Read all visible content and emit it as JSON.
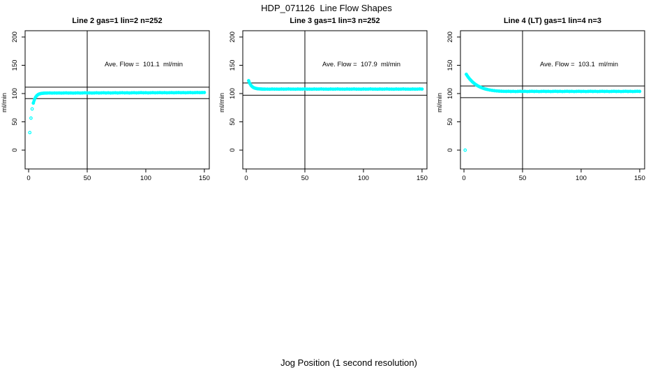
{
  "figure": {
    "title": "HDP_071126  Line Flow Shapes",
    "xlabel": "Jog Position (1 second resolution)",
    "background_color": "#ffffff",
    "point_color": "#00ffff",
    "axis_color": "#000000"
  },
  "chart_data": [
    {
      "type": "scatter",
      "title": "Line 2 gas=1 lin=2 n=252",
      "ylabel": "ml/min",
      "annotation": "Ave. Flow =  101.1  ml/min",
      "ave_flow": 101.1,
      "x_ticks": [
        0,
        50,
        100,
        150
      ],
      "y_ticks": [
        0,
        50,
        100,
        150,
        200
      ],
      "xlim": [
        -3,
        154.2
      ],
      "ylim": [
        -33.3,
        211.1
      ],
      "vline_x": 50,
      "hlines": [
        111.2,
        91.0
      ],
      "points": [
        [
          1,
          31
        ],
        [
          2,
          56.6
        ],
        [
          3,
          72.8
        ],
        [
          4,
          83.1
        ],
        [
          5,
          89.6
        ],
        [
          6,
          93.8
        ],
        [
          7,
          96.4
        ],
        [
          8,
          98.1
        ],
        [
          9,
          99.2
        ],
        [
          10,
          99.8
        ],
        [
          11,
          100.3
        ],
        [
          12,
          100.5
        ],
        [
          13,
          100.7
        ],
        [
          14,
          100.8
        ],
        [
          15,
          100.8
        ],
        [
          16,
          100.9
        ],
        [
          18,
          101.1
        ],
        [
          20,
          100.8
        ],
        [
          22,
          101.0
        ],
        [
          24,
          100.9
        ],
        [
          26,
          101.1
        ],
        [
          28,
          100.8
        ],
        [
          30,
          101.0
        ],
        [
          32,
          101.2
        ],
        [
          34,
          100.9
        ],
        [
          36,
          101.1
        ],
        [
          38,
          100.8
        ],
        [
          40,
          101.0
        ],
        [
          42,
          101.2
        ],
        [
          44,
          100.9
        ],
        [
          46,
          101.1
        ],
        [
          48,
          101.3
        ],
        [
          50,
          101.0
        ],
        [
          52,
          101.2
        ],
        [
          54,
          100.9
        ],
        [
          56,
          101.1
        ],
        [
          58,
          101.3
        ],
        [
          60,
          101.0
        ],
        [
          62,
          101.2
        ],
        [
          64,
          101.4
        ],
        [
          66,
          101.1
        ],
        [
          68,
          101.3
        ],
        [
          70,
          101.0
        ],
        [
          72,
          101.2
        ],
        [
          74,
          101.4
        ],
        [
          76,
          101.1
        ],
        [
          78,
          101.3
        ],
        [
          80,
          101.5
        ],
        [
          82,
          101.2
        ],
        [
          84,
          101.4
        ],
        [
          86,
          101.1
        ],
        [
          88,
          101.3
        ],
        [
          90,
          101.5
        ],
        [
          92,
          101.2
        ],
        [
          94,
          101.4
        ],
        [
          96,
          101.6
        ],
        [
          98,
          101.3
        ],
        [
          100,
          101.5
        ],
        [
          102,
          101.2
        ],
        [
          104,
          101.4
        ],
        [
          106,
          101.6
        ],
        [
          108,
          101.3
        ],
        [
          110,
          101.5
        ],
        [
          112,
          101.7
        ],
        [
          114,
          101.4
        ],
        [
          116,
          101.6
        ],
        [
          118,
          101.3
        ],
        [
          120,
          101.5
        ],
        [
          122,
          101.7
        ],
        [
          124,
          101.4
        ],
        [
          126,
          101.6
        ],
        [
          128,
          101.8
        ],
        [
          130,
          101.5
        ],
        [
          132,
          101.7
        ],
        [
          134,
          101.4
        ],
        [
          136,
          101.6
        ],
        [
          138,
          101.8
        ],
        [
          140,
          101.5
        ],
        [
          142,
          101.7
        ],
        [
          144,
          101.9
        ],
        [
          146,
          101.6
        ],
        [
          148,
          101.8
        ],
        [
          150,
          101.9
        ]
      ]
    },
    {
      "type": "scatter",
      "title": "Line 3 gas=1 lin=3 n=252",
      "ylabel": "ml/min",
      "annotation": "Ave. Flow =  107.9  ml/min",
      "ave_flow": 107.9,
      "x_ticks": [
        0,
        50,
        100,
        150
      ],
      "y_ticks": [
        0,
        50,
        100,
        150,
        200
      ],
      "xlim": [
        -3,
        154.2
      ],
      "ylim": [
        -33.3,
        211.1
      ],
      "vline_x": 50,
      "hlines": [
        118.7,
        97.1
      ],
      "points": [
        [
          2,
          122.8
        ],
        [
          3,
          117.9
        ],
        [
          4,
          114.5
        ],
        [
          5,
          112.3
        ],
        [
          6,
          110.8
        ],
        [
          7,
          109.8
        ],
        [
          8,
          109.2
        ],
        [
          9,
          108.7
        ],
        [
          10,
          108.4
        ],
        [
          11,
          108.2
        ],
        [
          12,
          108.1
        ],
        [
          13,
          108.0
        ],
        [
          14,
          107.9
        ],
        [
          15,
          107.9
        ],
        [
          16,
          107.8
        ],
        [
          18,
          107.9
        ],
        [
          20,
          107.7
        ],
        [
          22,
          108.0
        ],
        [
          24,
          107.8
        ],
        [
          26,
          107.9
        ],
        [
          28,
          107.7
        ],
        [
          30,
          108.0
        ],
        [
          32,
          107.8
        ],
        [
          34,
          107.9
        ],
        [
          36,
          108.1
        ],
        [
          38,
          107.8
        ],
        [
          40,
          107.9
        ],
        [
          42,
          107.7
        ],
        [
          44,
          108.0
        ],
        [
          46,
          107.8
        ],
        [
          48,
          107.9
        ],
        [
          50,
          108.1
        ],
        [
          52,
          107.8
        ],
        [
          54,
          107.9
        ],
        [
          56,
          107.7
        ],
        [
          58,
          108.0
        ],
        [
          60,
          107.8
        ],
        [
          62,
          107.9
        ],
        [
          64,
          108.1
        ],
        [
          66,
          107.8
        ],
        [
          68,
          107.9
        ],
        [
          70,
          107.7
        ],
        [
          72,
          108.0
        ],
        [
          74,
          107.8
        ],
        [
          76,
          107.9
        ],
        [
          78,
          108.1
        ],
        [
          80,
          107.8
        ],
        [
          82,
          107.9
        ],
        [
          84,
          107.7
        ],
        [
          86,
          108.0
        ],
        [
          88,
          107.8
        ],
        [
          90,
          107.9
        ],
        [
          92,
          108.1
        ],
        [
          94,
          107.8
        ],
        [
          96,
          107.9
        ],
        [
          98,
          107.7
        ],
        [
          100,
          108.0
        ],
        [
          102,
          107.8
        ],
        [
          104,
          107.9
        ],
        [
          106,
          108.1
        ],
        [
          108,
          107.8
        ],
        [
          110,
          107.9
        ],
        [
          112,
          107.7
        ],
        [
          114,
          108.0
        ],
        [
          116,
          107.8
        ],
        [
          118,
          107.9
        ],
        [
          120,
          108.1
        ],
        [
          122,
          107.8
        ],
        [
          124,
          107.9
        ],
        [
          126,
          107.7
        ],
        [
          128,
          108.0
        ],
        [
          130,
          107.8
        ],
        [
          132,
          107.9
        ],
        [
          134,
          108.1
        ],
        [
          136,
          107.8
        ],
        [
          138,
          107.9
        ],
        [
          140,
          107.7
        ],
        [
          142,
          108.0
        ],
        [
          144,
          107.8
        ],
        [
          146,
          107.9
        ],
        [
          148,
          108.1
        ],
        [
          150,
          107.9
        ]
      ]
    },
    {
      "type": "scatter",
      "title": "Line 4 (LT) gas=1 lin=4 n=3",
      "ylabel": "ml/min",
      "annotation": "Ave. Flow =  103.1  ml/min",
      "ave_flow": 103.1,
      "x_ticks": [
        0,
        50,
        100,
        150
      ],
      "y_ticks": [
        0,
        50,
        100,
        150,
        200
      ],
      "xlim": [
        -3,
        154.2
      ],
      "ylim": [
        -33.3,
        211.1
      ],
      "vline_x": 50,
      "hlines": [
        113.4,
        92.8
      ],
      "points": [
        [
          1,
          0
        ],
        [
          2,
          134.0
        ],
        [
          3,
          130.9
        ],
        [
          4,
          128.0
        ],
        [
          5,
          125.5
        ],
        [
          6,
          123.2
        ],
        [
          7,
          121.1
        ],
        [
          8,
          119.2
        ],
        [
          9,
          117.5
        ],
        [
          10,
          116.0
        ],
        [
          11,
          114.6
        ],
        [
          12,
          113.4
        ],
        [
          13,
          112.3
        ],
        [
          14,
          111.3
        ],
        [
          15,
          110.4
        ],
        [
          16,
          109.6
        ],
        [
          17,
          108.9
        ],
        [
          18,
          108.2
        ],
        [
          19,
          107.7
        ],
        [
          20,
          107.2
        ],
        [
          22,
          106.3
        ],
        [
          24,
          105.6
        ],
        [
          26,
          105.0
        ],
        [
          28,
          104.6
        ],
        [
          30,
          104.3
        ],
        [
          32,
          104.1
        ],
        [
          34,
          103.9
        ],
        [
          36,
          103.8
        ],
        [
          38,
          104.0
        ],
        [
          40,
          103.7
        ],
        [
          42,
          103.9
        ],
        [
          44,
          103.6
        ],
        [
          46,
          103.8
        ],
        [
          48,
          104.0
        ],
        [
          50,
          103.7
        ],
        [
          52,
          103.9
        ],
        [
          54,
          103.6
        ],
        [
          56,
          103.8
        ],
        [
          58,
          104.0
        ],
        [
          60,
          103.7
        ],
        [
          62,
          103.9
        ],
        [
          64,
          103.6
        ],
        [
          66,
          103.8
        ],
        [
          68,
          104.0
        ],
        [
          70,
          103.7
        ],
        [
          72,
          103.9
        ],
        [
          74,
          103.6
        ],
        [
          76,
          103.8
        ],
        [
          78,
          104.0
        ],
        [
          80,
          103.7
        ],
        [
          82,
          103.9
        ],
        [
          84,
          103.6
        ],
        [
          86,
          103.8
        ],
        [
          88,
          104.0
        ],
        [
          90,
          103.7
        ],
        [
          92,
          103.9
        ],
        [
          94,
          103.6
        ],
        [
          96,
          103.8
        ],
        [
          98,
          104.0
        ],
        [
          100,
          103.7
        ],
        [
          102,
          103.9
        ],
        [
          104,
          103.6
        ],
        [
          106,
          103.8
        ],
        [
          108,
          104.0
        ],
        [
          110,
          103.7
        ],
        [
          112,
          103.9
        ],
        [
          114,
          103.6
        ],
        [
          116,
          103.8
        ],
        [
          118,
          104.0
        ],
        [
          120,
          103.7
        ],
        [
          122,
          103.9
        ],
        [
          124,
          103.6
        ],
        [
          126,
          103.8
        ],
        [
          128,
          104.0
        ],
        [
          130,
          103.7
        ],
        [
          132,
          103.9
        ],
        [
          134,
          103.6
        ],
        [
          136,
          103.8
        ],
        [
          138,
          104.0
        ],
        [
          140,
          103.7
        ],
        [
          142,
          103.9
        ],
        [
          144,
          103.6
        ],
        [
          146,
          103.8
        ],
        [
          148,
          104.0
        ],
        [
          150,
          103.8
        ]
      ]
    }
  ]
}
